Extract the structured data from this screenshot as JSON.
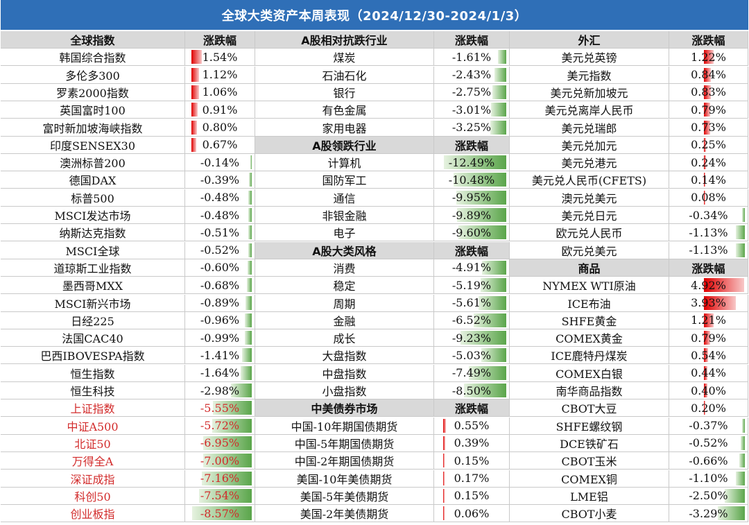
{
  "title": "全球大类资产本周表现（2024/12/30-2024/1/3）",
  "colors": {
    "header_bg": "#2f6fb7",
    "pos_bar": "#e00000",
    "neg_bar": "#5aa54a",
    "highlight_text": "#d22b2b"
  },
  "global_indices": {
    "header": {
      "name": "全球指数",
      "value": "涨跌幅"
    },
    "rows": [
      {
        "name": "韩国综合指数",
        "value": "1.54%",
        "num": 1.54,
        "red": false
      },
      {
        "name": "多伦多300",
        "value": "1.12%",
        "num": 1.12,
        "red": false
      },
      {
        "name": "罗素2000指数",
        "value": "1.06%",
        "num": 1.06,
        "red": false
      },
      {
        "name": "英国富时100",
        "value": "0.91%",
        "num": 0.91,
        "red": false
      },
      {
        "name": "富时新加坡海峡指数",
        "value": "0.80%",
        "num": 0.8,
        "red": false
      },
      {
        "name": "印度SENSEX30",
        "value": "0.67%",
        "num": 0.67,
        "red": false
      },
      {
        "name": "澳洲标普200",
        "value": "-0.14%",
        "num": -0.14,
        "red": false
      },
      {
        "name": "德国DAX",
        "value": "-0.39%",
        "num": -0.39,
        "red": false
      },
      {
        "name": "标普500",
        "value": "-0.48%",
        "num": -0.48,
        "red": false
      },
      {
        "name": "MSCI发达市场",
        "value": "-0.48%",
        "num": -0.48,
        "red": false
      },
      {
        "name": "纳斯达克指数",
        "value": "-0.51%",
        "num": -0.51,
        "red": false
      },
      {
        "name": "MSCI全球",
        "value": "-0.52%",
        "num": -0.52,
        "red": false
      },
      {
        "name": "道琼斯工业指数",
        "value": "-0.60%",
        "num": -0.6,
        "red": false
      },
      {
        "name": "墨西哥MXX",
        "value": "-0.68%",
        "num": -0.68,
        "red": false
      },
      {
        "name": "MSCI新兴市场",
        "value": "-0.89%",
        "num": -0.89,
        "red": false
      },
      {
        "name": "日经225",
        "value": "-0.96%",
        "num": -0.96,
        "red": false
      },
      {
        "name": "法国CAC40",
        "value": "-0.99%",
        "num": -0.99,
        "red": false
      },
      {
        "name": "巴西IBOVESPA指数",
        "value": "-1.41%",
        "num": -1.41,
        "red": false
      },
      {
        "name": "恒生指数",
        "value": "-1.64%",
        "num": -1.64,
        "red": false
      },
      {
        "name": "恒生科技",
        "value": "-2.98%",
        "num": -2.98,
        "red": false
      },
      {
        "name": "上证指数",
        "value": "-5.55%",
        "num": -5.55,
        "red": true
      },
      {
        "name": "中证A500",
        "value": "-5.72%",
        "num": -5.72,
        "red": true
      },
      {
        "name": "北证50",
        "value": "-6.95%",
        "num": -6.95,
        "red": true
      },
      {
        "name": "万得全A",
        "value": "-7.00%",
        "num": -7.0,
        "red": true
      },
      {
        "name": "深证成指",
        "value": "-7.16%",
        "num": -7.16,
        "red": true
      },
      {
        "name": "科创50",
        "value": "-7.54%",
        "num": -7.54,
        "red": true
      },
      {
        "name": "创业板指",
        "value": "-8.57%",
        "num": -8.57,
        "red": true
      }
    ]
  },
  "a_share": {
    "sections": [
      {
        "header": {
          "name": "A股相对抗跌行业",
          "value": "涨跌幅"
        },
        "rows": [
          {
            "name": "煤炭",
            "value": "-1.61%",
            "num": -1.61
          },
          {
            "name": "石油石化",
            "value": "-2.43%",
            "num": -2.43
          },
          {
            "name": "银行",
            "value": "-2.75%",
            "num": -2.75
          },
          {
            "name": "有色金属",
            "value": "-3.01%",
            "num": -3.01
          },
          {
            "name": "家用电器",
            "value": "-3.25%",
            "num": -3.25
          }
        ]
      },
      {
        "header": {
          "name": "A股领跌行业",
          "value": "涨跌幅"
        },
        "rows": [
          {
            "name": "计算机",
            "value": "-12.49%",
            "num": -12.49
          },
          {
            "name": "国防军工",
            "value": "-10.48%",
            "num": -10.48
          },
          {
            "name": "通信",
            "value": "-9.95%",
            "num": -9.95
          },
          {
            "name": "非银金融",
            "value": "-9.89%",
            "num": -9.89
          },
          {
            "name": "电子",
            "value": "-9.60%",
            "num": -9.6
          }
        ]
      },
      {
        "header": {
          "name": "A股大类风格",
          "value": "涨跌幅"
        },
        "rows": [
          {
            "name": "消费",
            "value": "-4.91%",
            "num": -4.91
          },
          {
            "name": "稳定",
            "value": "-5.19%",
            "num": -5.19
          },
          {
            "name": "周期",
            "value": "-5.61%",
            "num": -5.61
          },
          {
            "name": "金融",
            "value": "-6.52%",
            "num": -6.52
          },
          {
            "name": "成长",
            "value": "-9.23%",
            "num": -9.23
          },
          {
            "name": "大盘指数",
            "value": "-5.03%",
            "num": -5.03
          },
          {
            "name": "中盘指数",
            "value": "-7.49%",
            "num": -7.49
          },
          {
            "name": "小盘指数",
            "value": "-8.50%",
            "num": -8.5
          }
        ]
      },
      {
        "header": {
          "name": "中美债券市场",
          "value": "涨跌幅"
        },
        "rows": [
          {
            "name": "中国-10年期国债期货",
            "value": "0.55%",
            "num": 0.55
          },
          {
            "name": "中国-5年期国债期货",
            "value": "0.39%",
            "num": 0.39
          },
          {
            "name": "中国-2年期国债期货",
            "value": "0.15%",
            "num": 0.15
          },
          {
            "name": "美国-10年美债期货",
            "value": "0.17%",
            "num": 0.17
          },
          {
            "name": "美国-5年美债期货",
            "value": "0.15%",
            "num": 0.15
          },
          {
            "name": "美国-2年美债期货",
            "value": "0.06%",
            "num": 0.06
          }
        ]
      }
    ]
  },
  "fx_commodities": {
    "sections": [
      {
        "header": {
          "name": "外汇",
          "value": "涨跌幅"
        },
        "rows": [
          {
            "name": "美元兑英镑",
            "value": "1.22%",
            "num": 1.22
          },
          {
            "name": "美元指数",
            "value": "0.84%",
            "num": 0.84
          },
          {
            "name": "美元兑新加坡元",
            "value": "0.83%",
            "num": 0.83
          },
          {
            "name": "美元兑离岸人民币",
            "value": "0.79%",
            "num": 0.79
          },
          {
            "name": "美元兑瑞郎",
            "value": "0.73%",
            "num": 0.73
          },
          {
            "name": "美元兑加元",
            "value": "0.25%",
            "num": 0.25
          },
          {
            "name": "美元兑港元",
            "value": "0.24%",
            "num": 0.24
          },
          {
            "name": "美元兑人民币(CFETS)",
            "value": "0.14%",
            "num": 0.14
          },
          {
            "name": "澳元兑美元",
            "value": "0.08%",
            "num": 0.08
          },
          {
            "name": "美元兑日元",
            "value": "-0.34%",
            "num": -0.34
          },
          {
            "name": "欧元兑人民币",
            "value": "-1.13%",
            "num": -1.13
          },
          {
            "name": "欧元兑美元",
            "value": "-1.13%",
            "num": -1.13
          }
        ]
      },
      {
        "header": {
          "name": "商品",
          "value": "涨跌幅"
        },
        "rows": [
          {
            "name": "NYMEX WTI原油",
            "value": "4.92%",
            "num": 4.92
          },
          {
            "name": "ICE布油",
            "value": "3.93%",
            "num": 3.93
          },
          {
            "name": "SHFE黄金",
            "value": "1.21%",
            "num": 1.21
          },
          {
            "name": "COMEX黄金",
            "value": "0.79%",
            "num": 0.79
          },
          {
            "name": "ICE鹿特丹煤炭",
            "value": "0.54%",
            "num": 0.54
          },
          {
            "name": "COMEX白银",
            "value": "0.44%",
            "num": 0.44
          },
          {
            "name": "南华商品指数",
            "value": "0.40%",
            "num": 0.4
          },
          {
            "name": "CBOT大豆",
            "value": "0.20%",
            "num": 0.2
          },
          {
            "name": "SHFE螺纹钢",
            "value": "-0.37%",
            "num": -0.37
          },
          {
            "name": "DCE铁矿石",
            "value": "-0.52%",
            "num": -0.52
          },
          {
            "name": "CBOT玉米",
            "value": "-0.66%",
            "num": -0.66
          },
          {
            "name": "COMEX铜",
            "value": "-1.10%",
            "num": -1.1
          },
          {
            "name": "LME铝",
            "value": "-2.50%",
            "num": -2.5
          },
          {
            "name": "CBOT小麦",
            "value": "-3.29%",
            "num": -3.29
          }
        ]
      }
    ]
  }
}
